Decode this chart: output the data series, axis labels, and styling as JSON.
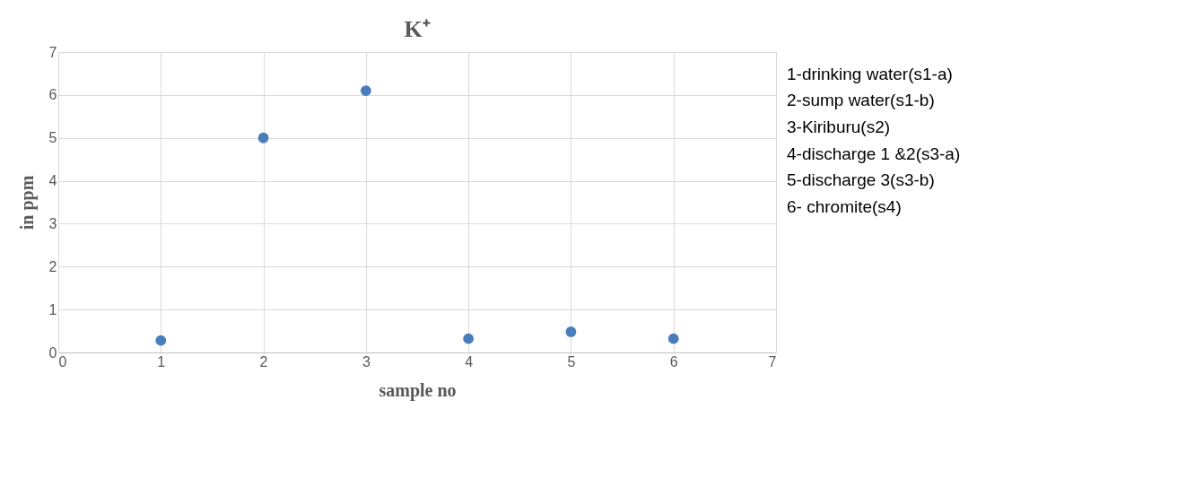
{
  "chart_data": {
    "type": "scatter",
    "title": "K⁺",
    "xlabel": "sample no",
    "ylabel": "in ppm",
    "x": [
      1,
      2,
      3,
      4,
      5,
      6
    ],
    "series": [
      {
        "color": "#4a7ebb",
        "values": [
          0.28,
          5.0,
          6.1,
          0.32,
          0.48,
          0.32
        ]
      }
    ],
    "xlim": [
      0,
      7
    ],
    "xticks": [
      0,
      1,
      2,
      3,
      4,
      5,
      6,
      7
    ],
    "ylim": [
      0,
      7
    ],
    "yticks": [
      0,
      1,
      2,
      3,
      4,
      5,
      6,
      7
    ],
    "grid": true,
    "marker": "circle",
    "annotations": [
      "1-drinking water(s1-a)",
      "2-sump water(s1-b)",
      "3-Kiriburu(s2)",
      "4-discharge 1 &2(s3-a)",
      "5-discharge 3(s3-b)",
      "6- chromite(s4)"
    ]
  }
}
